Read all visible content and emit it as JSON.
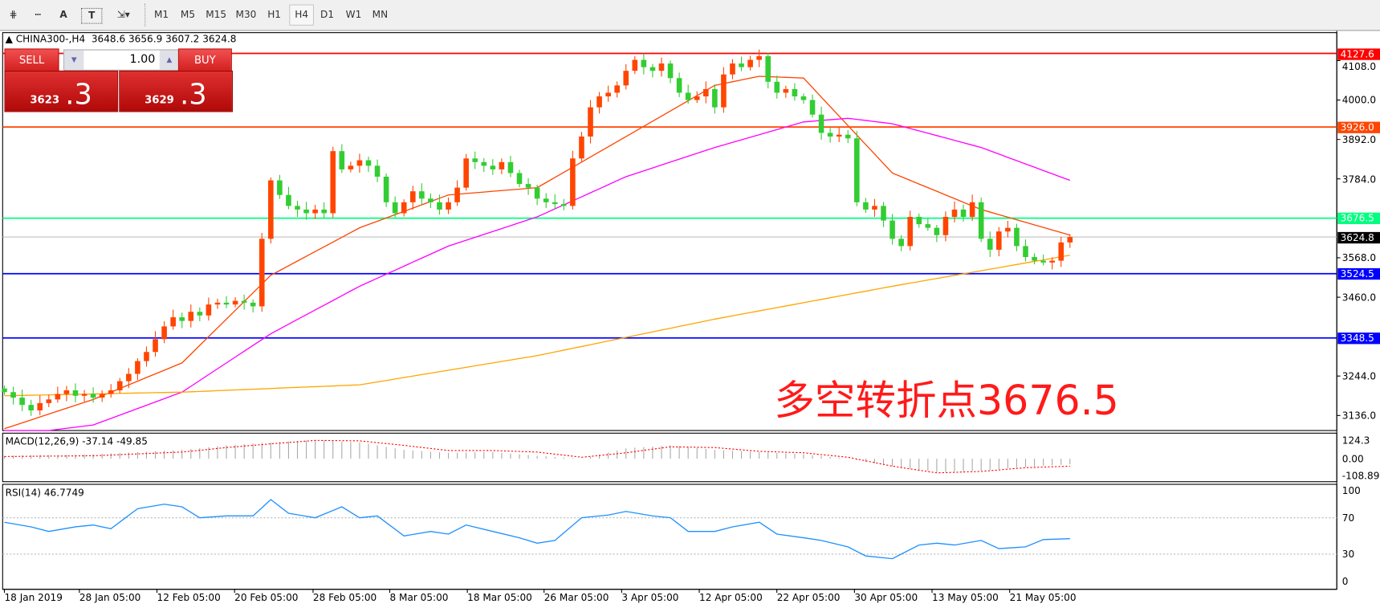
{
  "toolbar": {
    "tools": [
      {
        "icon": "grid-e-icon"
      },
      {
        "icon": "period-separator-f-icon"
      },
      {
        "label": "A",
        "icon": "text-icon"
      },
      {
        "label": "T",
        "icon": "text-label-icon"
      },
      {
        "icon": "arrows-dropdown-icon"
      }
    ],
    "timeframes": [
      "M1",
      "M5",
      "M15",
      "M30",
      "H1",
      "H4",
      "D1",
      "W1",
      "MN"
    ],
    "active_timeframe": "H4"
  },
  "header": {
    "symbol": "CHINA300-,H4",
    "ohlc": "3648.6 3656.9 3607.2 3624.8"
  },
  "trade_panel": {
    "sell_label": "SELL",
    "buy_label": "BUY",
    "lot": "1.00",
    "sell_price_small": "3623",
    "sell_price_big": ".3",
    "buy_price_small": "3629",
    "buy_price_big": ".3"
  },
  "annotation": "多空转折点3676.5",
  "colors": {
    "up": "#ff4500",
    "down": "#32cd32",
    "ma_fast": "#ff4500",
    "ma_mid": "#ff00ff",
    "ma_slow": "#ffa500",
    "rsi": "#1e90ff",
    "macd_signal": "#ff0000"
  },
  "chart_data": [
    {
      "type": "candlestick",
      "ylim": [
        3100,
        4160
      ],
      "y_ticks": [
        "4108.0",
        "4000.0",
        "3892.0",
        "3784.0",
        "3568.0",
        "3460.0",
        "3244.0",
        "3136.0"
      ],
      "x_ticks": [
        "18 Jan 2019",
        "28 Jan 05:00",
        "12 Feb 05:00",
        "20 Feb 05:00",
        "28 Feb 05:00",
        "8 Mar 05:00",
        "18 Mar 05:00",
        "26 Mar 05:00",
        "3 Apr 05:00",
        "12 Apr 05:00",
        "22 Apr 05:00",
        "30 Apr 05:00",
        "13 May 05:00",
        "21 May 05:00"
      ],
      "close": [
        3200,
        3185,
        3165,
        3150,
        3170,
        3180,
        3195,
        3205,
        3190,
        3195,
        3185,
        3195,
        3205,
        3230,
        3250,
        3285,
        3310,
        3345,
        3380,
        3405,
        3395,
        3420,
        3410,
        3440,
        3445,
        3440,
        3450,
        3445,
        3435,
        3620,
        3780,
        3740,
        3710,
        3700,
        3690,
        3700,
        3690,
        3860,
        3810,
        3820,
        3835,
        3820,
        3790,
        3720,
        3690,
        3720,
        3750,
        3730,
        3720,
        3700,
        3720,
        3760,
        3840,
        3830,
        3820,
        3810,
        3830,
        3800,
        3770,
        3760,
        3730,
        3720,
        3715,
        3710,
        3840,
        3900,
        3980,
        4010,
        4020,
        4040,
        4080,
        4110,
        4090,
        4080,
        4100,
        4060,
        4020,
        4000,
        4010,
        4030,
        3980,
        4070,
        4100,
        4090,
        4110,
        4120,
        4050,
        4020,
        4030,
        4010,
        4000,
        3960,
        3910,
        3900,
        3905,
        3895,
        3720,
        3700,
        3710,
        3670,
        3620,
        3600,
        3680,
        3660,
        3650,
        3630,
        3680,
        3700,
        3680,
        3720,
        3620,
        3590,
        3640,
        3650,
        3600,
        3570,
        3560,
        3555,
        3560,
        3610,
        3624.8
      ],
      "horizontal_lines": [
        {
          "value": "4127.6",
          "color": "#ff0000"
        },
        {
          "value": "3926.0",
          "color": "#ff4500"
        },
        {
          "value": "3676.5",
          "color": "#00ff7f"
        },
        {
          "value": "3624.8",
          "color": "#c0c0c0",
          "label_bg": "#000000"
        },
        {
          "value": "3524.5",
          "color": "#0000ff"
        },
        {
          "value": "3348.5",
          "color": "#0000ff"
        }
      ],
      "moving_averages": [
        {
          "color": "#ff4500",
          "points": [
            [
              0,
              3100
            ],
            [
              10,
              3180
            ],
            [
              20,
              3280
            ],
            [
              30,
              3520
            ],
            [
              40,
              3650
            ],
            [
              50,
              3740
            ],
            [
              60,
              3760
            ],
            [
              70,
              3900
            ],
            [
              80,
              4040
            ],
            [
              85,
              4065
            ],
            [
              90,
              4060
            ],
            [
              100,
              3800
            ],
            [
              110,
              3700
            ],
            [
              120,
              3630
            ]
          ]
        },
        {
          "color": "#ff00ff",
          "points": [
            [
              0,
              3080
            ],
            [
              10,
              3110
            ],
            [
              20,
              3200
            ],
            [
              30,
              3360
            ],
            [
              40,
              3490
            ],
            [
              50,
              3600
            ],
            [
              60,
              3680
            ],
            [
              70,
              3790
            ],
            [
              80,
              3870
            ],
            [
              90,
              3940
            ],
            [
              95,
              3950
            ],
            [
              100,
              3935
            ],
            [
              110,
              3870
            ],
            [
              120,
              3780
            ]
          ]
        },
        {
          "color": "#ffa500",
          "points": [
            [
              0,
              3190
            ],
            [
              20,
              3200
            ],
            [
              40,
              3220
            ],
            [
              60,
              3300
            ],
            [
              80,
              3400
            ],
            [
              100,
              3490
            ],
            [
              120,
              3575
            ]
          ]
        }
      ]
    },
    {
      "type": "bar",
      "title": "MACD(12,26,9) -37.14 -49.85",
      "y_ticks": [
        "124.3",
        "0.00",
        "-108.89"
      ],
      "histogram_points": [
        [
          0,
          20
        ],
        [
          10,
          30
        ],
        [
          20,
          60
        ],
        [
          25,
          90
        ],
        [
          30,
          110
        ],
        [
          35,
          125
        ],
        [
          40,
          110
        ],
        [
          45,
          60
        ],
        [
          50,
          40
        ],
        [
          55,
          45
        ],
        [
          60,
          20
        ],
        [
          65,
          0
        ],
        [
          70,
          70
        ],
        [
          75,
          90
        ],
        [
          80,
          60
        ],
        [
          85,
          45
        ],
        [
          90,
          30
        ],
        [
          95,
          0
        ],
        [
          100,
          -50
        ],
        [
          105,
          -90
        ],
        [
          110,
          -80
        ],
        [
          115,
          -55
        ],
        [
          120,
          -37.14
        ]
      ],
      "signal_points": [
        [
          0,
          15
        ],
        [
          10,
          20
        ],
        [
          20,
          45
        ],
        [
          25,
          75
        ],
        [
          30,
          100
        ],
        [
          35,
          123
        ],
        [
          40,
          120
        ],
        [
          45,
          90
        ],
        [
          50,
          55
        ],
        [
          55,
          55
        ],
        [
          60,
          45
        ],
        [
          65,
          10
        ],
        [
          70,
          40
        ],
        [
          75,
          80
        ],
        [
          80,
          75
        ],
        [
          85,
          50
        ],
        [
          90,
          40
        ],
        [
          95,
          10
        ],
        [
          100,
          -50
        ],
        [
          105,
          -95
        ],
        [
          110,
          -85
        ],
        [
          115,
          -60
        ],
        [
          120,
          -49.85
        ]
      ]
    },
    {
      "type": "line",
      "title": "RSI(14) 46.7749",
      "y_ticks": [
        "100",
        "70",
        "30",
        "0"
      ],
      "points": [
        [
          0,
          65
        ],
        [
          3,
          60
        ],
        [
          5,
          55
        ],
        [
          8,
          60
        ],
        [
          10,
          62
        ],
        [
          12,
          58
        ],
        [
          15,
          80
        ],
        [
          18,
          85
        ],
        [
          20,
          82
        ],
        [
          22,
          70
        ],
        [
          25,
          72
        ],
        [
          28,
          72
        ],
        [
          30,
          90
        ],
        [
          32,
          75
        ],
        [
          35,
          70
        ],
        [
          38,
          82
        ],
        [
          40,
          70
        ],
        [
          42,
          72
        ],
        [
          45,
          50
        ],
        [
          48,
          55
        ],
        [
          50,
          52
        ],
        [
          52,
          62
        ],
        [
          55,
          55
        ],
        [
          58,
          48
        ],
        [
          60,
          42
        ],
        [
          62,
          45
        ],
        [
          65,
          70
        ],
        [
          68,
          73
        ],
        [
          70,
          77
        ],
        [
          73,
          72
        ],
        [
          75,
          70
        ],
        [
          77,
          55
        ],
        [
          80,
          55
        ],
        [
          82,
          60
        ],
        [
          85,
          65
        ],
        [
          87,
          52
        ],
        [
          90,
          48
        ],
        [
          92,
          45
        ],
        [
          95,
          38
        ],
        [
          97,
          28
        ],
        [
          100,
          25
        ],
        [
          103,
          40
        ],
        [
          105,
          42
        ],
        [
          107,
          40
        ],
        [
          110,
          45
        ],
        [
          112,
          36
        ],
        [
          115,
          38
        ],
        [
          117,
          46
        ],
        [
          120,
          47
        ]
      ]
    }
  ]
}
